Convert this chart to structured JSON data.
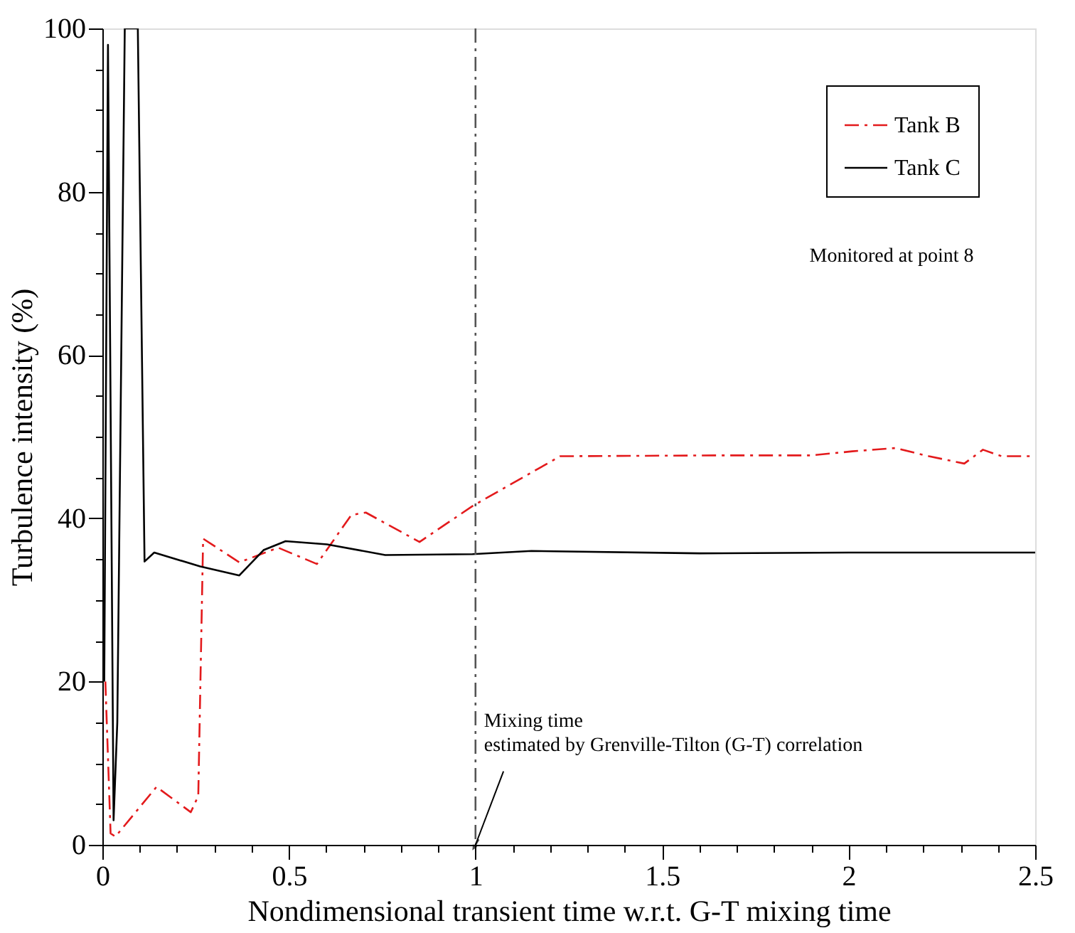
{
  "chart_data": {
    "type": "line",
    "xlabel": "Nondimensional transient time w.r.t. G-T mixing time",
    "ylabel": "Turbulence intensity (%)",
    "xlim": [
      0,
      2.5
    ],
    "ylim": [
      0,
      100
    ],
    "xticks": [
      0,
      {
        "value": 0.1,
        "label": null
      },
      {
        "value": 0.2,
        "label": null
      },
      {
        "value": 0.3,
        "label": null
      },
      {
        "value": 0.4,
        "label": null
      },
      0.5,
      {
        "value": 0.6,
        "label": null
      },
      {
        "value": 0.7,
        "label": null
      },
      {
        "value": 0.8,
        "label": null
      },
      {
        "value": 0.9,
        "label": null
      },
      1,
      {
        "value": 1.1,
        "label": null
      },
      {
        "value": 1.2,
        "label": null
      },
      {
        "value": 1.3,
        "label": null
      },
      {
        "value": 1.4,
        "label": null
      },
      1.5,
      {
        "value": 1.6,
        "label": null
      },
      {
        "value": 1.7,
        "label": null
      },
      {
        "value": 1.8,
        "label": null
      },
      {
        "value": 1.9,
        "label": null
      },
      2,
      {
        "value": 2.1,
        "label": null
      },
      {
        "value": 2.2,
        "label": null
      },
      {
        "value": 2.3,
        "label": null
      },
      {
        "value": 2.4,
        "label": null
      },
      2.5
    ],
    "yticks": [
      0,
      {
        "value": 5,
        "label": null
      },
      {
        "value": 10,
        "label": null
      },
      {
        "value": 15,
        "label": null
      },
      20,
      {
        "value": 25,
        "label": null
      },
      {
        "value": 30,
        "label": null
      },
      {
        "value": 35,
        "label": null
      },
      40,
      {
        "value": 45,
        "label": null
      },
      {
        "value": 50,
        "label": null
      },
      {
        "value": 55,
        "label": null
      },
      60,
      {
        "value": 65,
        "label": null
      },
      {
        "value": 70,
        "label": null
      },
      {
        "value": 75,
        "label": null
      },
      80,
      {
        "value": 85,
        "label": null
      },
      {
        "value": 90,
        "label": null
      },
      {
        "value": 95,
        "label": null
      },
      100
    ],
    "grid": false,
    "legend": "top right",
    "marker": "none",
    "series": [
      {
        "name": "Tank B",
        "color": "#e31a1c",
        "line_style": "dashed",
        "x": [
          0.008,
          0.022,
          0.035,
          0.145,
          0.237,
          0.257,
          0.27,
          0.367,
          0.471,
          0.575,
          0.667,
          0.706,
          0.85,
          0.992,
          1.227,
          1.643,
          1.9,
          2.01,
          2.125,
          2.215,
          2.31,
          2.36,
          2.41,
          2.5
        ],
        "values": [
          20,
          1.4,
          1,
          7.1,
          4.0,
          6,
          37.5,
          34.6,
          36.4,
          34.4,
          40.4,
          40.7,
          37.1,
          41.5,
          47.6,
          47.7,
          47.7,
          48.2,
          48.6,
          47.6,
          46.7,
          48.4,
          47.6,
          47.6
        ]
      },
      {
        "name": "Tank C",
        "color": "#000000",
        "line_style": "solid",
        "x": [
          0.005,
          0.015,
          0.03,
          0.04,
          0.06,
          0.095,
          0.113,
          0.139,
          0.262,
          0.367,
          0.432,
          0.491,
          0.602,
          0.758,
          0.992,
          1.15,
          1.6,
          2.0,
          2.5
        ],
        "values": [
          20,
          98,
          3,
          15,
          100,
          100,
          34.7,
          35.8,
          34.1,
          33.0,
          36.1,
          37.2,
          36.8,
          35.5,
          35.6,
          36.0,
          35.7,
          35.8,
          35.8
        ]
      }
    ],
    "ref_lines": [
      {
        "axis": "x",
        "value": 1,
        "color": "#555555",
        "line_style": "dashed"
      }
    ],
    "annotations": [
      "Monitored at point 8",
      {
        "text": "Mixing time\nestimated by Grenville-Tilton (G-T) correlation",
        "x": 1,
        "y": 0
      }
    ]
  }
}
